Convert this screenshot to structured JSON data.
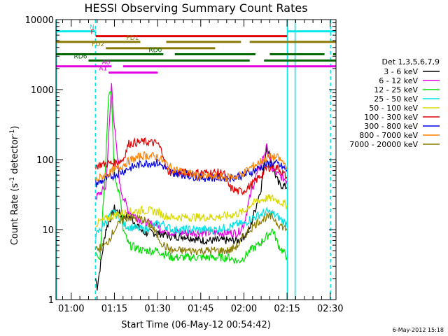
{
  "chart_data": {
    "type": "line",
    "title": "HESSI Observing Summary Count Rates",
    "xlabel": "Start Time (06-May-12 00:54:42)",
    "ylabel_main": "Count Rate (s",
    "ylabel_sup1": "-1",
    "ylabel_mid": " detector",
    "ylabel_sup2": "-1",
    "ylabel_end": ")",
    "yscale": "log",
    "ylim": [
      1,
      10000
    ],
    "xlim_minutes": [
      54.7,
      152.0
    ],
    "x_ticks": [
      {
        "m": 60,
        "label": "01:00"
      },
      {
        "m": 75,
        "label": "01:15"
      },
      {
        "m": 90,
        "label": "01:30"
      },
      {
        "m": 105,
        "label": "01:45"
      },
      {
        "m": 120,
        "label": "02:00"
      },
      {
        "m": 135,
        "label": "02:15"
      },
      {
        "m": 150,
        "label": "02:30"
      }
    ],
    "y_ticks": [
      {
        "v": 1,
        "label": "1"
      },
      {
        "v": 10,
        "label": "10"
      },
      {
        "v": 100,
        "label": "100"
      },
      {
        "v": 1000,
        "label": "1000"
      },
      {
        "v": 10000,
        "label": "10000"
      }
    ],
    "legend_title": "Det 1,3,5,6,7,9",
    "legend_position": "right",
    "series": [
      {
        "name": "3 - 6 keV",
        "color": "#000000",
        "x": [
          68.5,
          69,
          72,
          75,
          78,
          80,
          85,
          90,
          95,
          100,
          105,
          110,
          115,
          118,
          120,
          122,
          124,
          126,
          127,
          128,
          129,
          130,
          132,
          135
        ],
        "y": [
          2,
          1.5,
          10,
          20,
          15,
          16,
          9,
          9,
          8,
          8,
          7,
          7,
          7,
          7,
          8,
          10,
          20,
          40,
          80,
          170,
          110,
          80,
          45,
          40
        ]
      },
      {
        "name": "6 - 12 keV",
        "color": "#e000e0",
        "x": [
          68.5,
          69,
          72,
          73,
          74,
          75,
          77,
          78,
          80,
          85,
          88,
          90,
          91,
          92,
          95,
          100,
          105,
          110,
          115,
          118,
          120,
          122,
          124,
          126,
          127,
          128,
          129,
          130,
          132,
          135
        ],
        "y": [
          30,
          30,
          40,
          200,
          1200,
          300,
          40,
          30,
          18,
          13,
          12,
          12,
          10,
          10,
          9,
          9,
          9,
          9,
          9,
          9,
          12,
          28,
          55,
          85,
          120,
          150,
          100,
          70,
          60,
          50
        ]
      },
      {
        "name": "12 - 25 keV",
        "color": "#00e000",
        "x": [
          68.5,
          70,
          72,
          73,
          74,
          75,
          77,
          78,
          80,
          85,
          90,
          95,
          100,
          105,
          110,
          115,
          118,
          120,
          122,
          125,
          128,
          130,
          132,
          135
        ],
        "y": [
          5,
          4,
          100,
          900,
          800,
          60,
          30,
          10,
          6,
          5,
          5,
          4,
          4,
          4,
          4,
          4,
          3.5,
          4,
          5,
          6,
          8,
          10,
          6,
          4
        ]
      },
      {
        "name": "25 - 50 keV",
        "color": "#00e0e0",
        "x": [
          68.5,
          70,
          73,
          75,
          77,
          78,
          80,
          85,
          90,
          92,
          95,
          100,
          105,
          110,
          115,
          118,
          120,
          122,
          125,
          128,
          130,
          132,
          135
        ],
        "y": [
          8,
          10,
          15,
          18,
          14,
          12,
          11,
          10,
          12,
          12,
          10,
          10,
          10,
          10,
          11,
          12,
          12,
          14,
          16,
          18,
          17,
          15,
          12
        ]
      },
      {
        "name": "50 - 100 keV",
        "color": "#d8d800",
        "x": [
          68.5,
          70,
          75,
          80,
          85,
          90,
          92,
          95,
          100,
          105,
          110,
          115,
          118,
          120,
          122,
          125,
          128,
          130,
          132,
          135
        ],
        "y": [
          12,
          13,
          16,
          18,
          19,
          18,
          16,
          15,
          15,
          15,
          15,
          16,
          17,
          18,
          22,
          26,
          28,
          28,
          26,
          22
        ]
      },
      {
        "name": "100 - 300 keV",
        "color": "#e00000",
        "x": [
          68.5,
          70,
          75,
          78,
          80,
          85,
          90,
          92,
          93,
          95,
          100,
          105,
          110,
          113,
          115,
          118,
          120,
          123,
          126,
          128,
          130,
          132,
          135
        ],
        "y": [
          80,
          85,
          90,
          100,
          170,
          180,
          170,
          120,
          70,
          65,
          65,
          65,
          65,
          65,
          40,
          35,
          36,
          45,
          60,
          75,
          80,
          75,
          55
        ]
      },
      {
        "name": "300 - 800 keV",
        "color": "#0000e0",
        "x": [
          68.5,
          70,
          75,
          80,
          85,
          90,
          92,
          95,
          100,
          105,
          110,
          115,
          118,
          120,
          122,
          125,
          128,
          130,
          132,
          135
        ],
        "y": [
          45,
          48,
          60,
          75,
          88,
          90,
          80,
          65,
          60,
          55,
          55,
          55,
          58,
          60,
          65,
          75,
          85,
          90,
          85,
          70
        ]
      },
      {
        "name": "800 - 7000 keV",
        "color": "#ff8000",
        "x": [
          68.5,
          70,
          75,
          80,
          85,
          90,
          92,
          95,
          100,
          105,
          110,
          115,
          118,
          120,
          122,
          125,
          128,
          130,
          132,
          135
        ],
        "y": [
          50,
          55,
          70,
          95,
          115,
          110,
          95,
          75,
          65,
          58,
          56,
          56,
          58,
          65,
          75,
          90,
          105,
          110,
          105,
          80
        ]
      },
      {
        "name": "7000 - 20000 keV",
        "color": "#8a7a00",
        "x": [
          68.5,
          70,
          72,
          75,
          78,
          80,
          85,
          88,
          90,
          92,
          95,
          100,
          105,
          110,
          115,
          118,
          120,
          122,
          125,
          128,
          130,
          132,
          135
        ],
        "y": [
          5,
          5.5,
          6,
          10,
          14,
          15,
          14,
          11,
          8,
          6,
          5,
          5,
          5,
          5,
          5,
          6,
          8,
          10,
          13,
          15,
          15,
          12,
          10
        ]
      }
    ],
    "state_bars": [
      {
        "name": "N",
        "color": "#00e8e8",
        "y": 6800,
        "segments": [
          [
            54.7,
            68.5
          ],
          [
            135,
            152
          ]
        ]
      },
      {
        "name": "F",
        "color": "#e00000",
        "y": 5800,
        "segments": [
          [
            68.5,
            135
          ]
        ]
      },
      {
        "name": "FD1",
        "color": "#8a7a00",
        "y": 4800,
        "segments": [
          [
            54.7,
            84
          ],
          [
            93,
            119
          ],
          [
            122,
            152
          ]
        ]
      },
      {
        "name": "FD2",
        "color": "#8a7a00",
        "y": 3900,
        "segments": [
          [
            72,
            110
          ]
        ]
      },
      {
        "name": "RD0",
        "color": "#006800",
        "y": 3200,
        "segments": [
          [
            54.7,
            92
          ],
          [
            96,
            124
          ],
          [
            129,
            148
          ],
          [
            151,
            152
          ]
        ]
      },
      {
        "name": "RD6",
        "color": "#006800",
        "y": 2600,
        "segments": [
          [
            66,
            122
          ],
          [
            127,
            152
          ]
        ]
      },
      {
        "name": "A0",
        "color": "#e000e0",
        "y": 2150,
        "segments": [
          [
            54.7,
            74
          ],
          [
            78,
            152
          ]
        ]
      },
      {
        "name": "A1",
        "color": "#e000e0",
        "y": 1750,
        "segments": [
          [
            73,
            90
          ]
        ]
      }
    ],
    "vlines": [
      {
        "m": 54.9,
        "color": "#00e8e8",
        "style": "solid"
      },
      {
        "m": 68.4,
        "color": "#00e8e8",
        "style": "dashed"
      },
      {
        "m": 135.1,
        "color": "#00e8e8",
        "style": "solid"
      },
      {
        "m": 137.8,
        "color": "#00e8e8",
        "style": "solid"
      },
      {
        "m": 150.1,
        "color": "#00e8e8",
        "style": "dashed"
      }
    ],
    "footer_date": "6-May-2012 15:18"
  }
}
